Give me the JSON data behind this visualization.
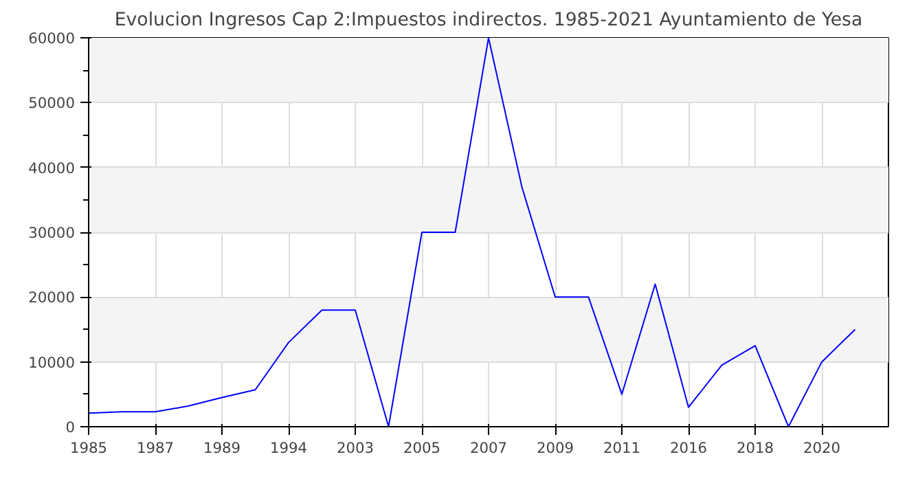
{
  "chart_data": {
    "type": "line",
    "title": "Evolucion Ingresos Cap 2:Impuestos indirectos. 1985-2021 Ayuntamiento de Yesa",
    "categories": [
      "1985",
      null,
      "1987",
      null,
      "1989",
      null,
      "1994",
      null,
      "2003",
      null,
      "2005",
      null,
      "2007",
      null,
      "2009",
      null,
      "2011",
      null,
      "2016",
      null,
      "2018",
      null,
      "2020",
      null
    ],
    "series": [
      {
        "color": "#0000ff",
        "values": [
          2100,
          2300,
          2300,
          3200,
          4500,
          5700,
          13000,
          18000,
          18000,
          0,
          30000,
          30000,
          60000,
          37000,
          20000,
          20000,
          5000,
          22000,
          3000,
          9500,
          12500,
          0,
          10000,
          15000
        ]
      }
    ],
    "ylim": [
      0,
      60000
    ],
    "yticks": [
      0,
      10000,
      20000,
      30000,
      40000,
      50000,
      60000
    ],
    "grid": true,
    "marker": "none",
    "line_style": "solid"
  }
}
